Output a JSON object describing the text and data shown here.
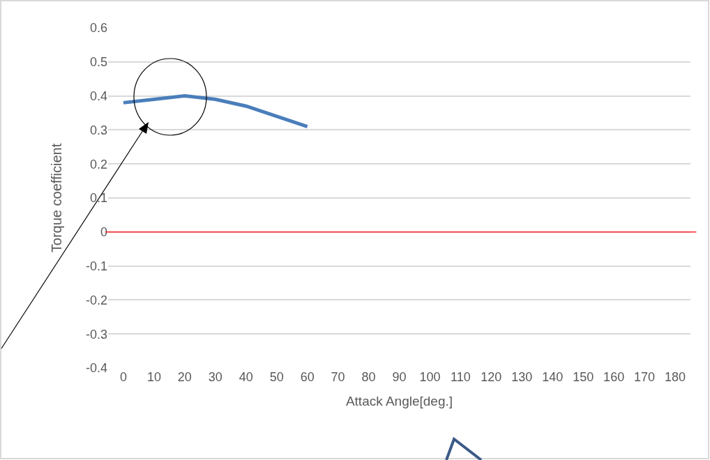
{
  "chart_data": {
    "type": "line",
    "xlabel": "Attack Angle[deg.]",
    "ylabel": "Torque coefficient",
    "categories": [
      "0",
      "10",
      "20",
      "30",
      "40",
      "50",
      "60",
      "70",
      "80",
      "90",
      "100",
      "110",
      "120",
      "130",
      "140",
      "150",
      "160",
      "170",
      "180"
    ],
    "series": [
      {
        "color": "#4a7ebb",
        "values": [
          0.38,
          0.39,
          0.4,
          0.39,
          0.37,
          0.34,
          0.31,
          null,
          null,
          null,
          null,
          null,
          null,
          null,
          null,
          null,
          null,
          null,
          null
        ]
      }
    ],
    "ylim": [
      -0.4,
      0.6
    ],
    "yticks": [
      -0.4,
      -0.3,
      -0.2,
      -0.1,
      0,
      0.1,
      0.2,
      0.3,
      0.4,
      0.5,
      0.6
    ],
    "ref_lines": [
      {
        "axis": "y",
        "value": 0,
        "color": "#ff0000"
      }
    ],
    "grid": "y",
    "marker": "none",
    "line_style": "solid"
  }
}
